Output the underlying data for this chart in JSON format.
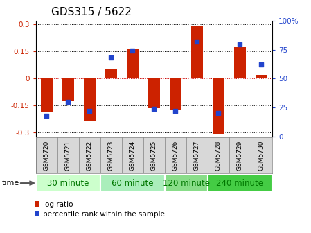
{
  "title": "GDS315 / 5622",
  "samples": [
    "GSM5720",
    "GSM5721",
    "GSM5722",
    "GSM5723",
    "GSM5724",
    "GSM5725",
    "GSM5726",
    "GSM5727",
    "GSM5728",
    "GSM5729",
    "GSM5730"
  ],
  "log_ratio": [
    -0.185,
    -0.12,
    -0.235,
    0.055,
    0.165,
    -0.165,
    -0.175,
    0.295,
    -0.305,
    0.175,
    0.02
  ],
  "percentile": [
    18,
    30,
    22,
    68,
    74,
    24,
    22,
    82,
    20,
    80,
    62
  ],
  "groups": [
    {
      "label": "30 minute",
      "start": 0,
      "end": 3,
      "color": "#ccffcc"
    },
    {
      "label": "60 minute",
      "start": 3,
      "end": 6,
      "color": "#aaeebb"
    },
    {
      "label": "120 minute",
      "start": 6,
      "end": 8,
      "color": "#88dd88"
    },
    {
      "label": "240 minute",
      "start": 8,
      "end": 11,
      "color": "#44cc44"
    }
  ],
  "ylim": [
    -0.32,
    0.32
  ],
  "yticks": [
    -0.3,
    -0.15,
    0,
    0.15,
    0.3
  ],
  "ytick_labels": [
    "-0.3",
    "-0.15",
    "0",
    "0.15",
    "0.3"
  ],
  "right_yticks": [
    0,
    25,
    50,
    75,
    100
  ],
  "right_ytick_labels": [
    "0",
    "25",
    "50",
    "75",
    "100%"
  ],
  "bar_color": "#cc2200",
  "dot_color": "#2244cc",
  "bar_width": 0.55,
  "grid_color": "#000000",
  "zero_line_color": "#cc0000",
  "legend_bar_label": "log ratio",
  "legend_dot_label": "percentile rank within the sample",
  "time_label": "time",
  "group_label_color": "#007700",
  "title_fontsize": 11,
  "axis_fontsize": 7.5,
  "group_fontsize": 8.5,
  "label_fontsize": 6.5
}
